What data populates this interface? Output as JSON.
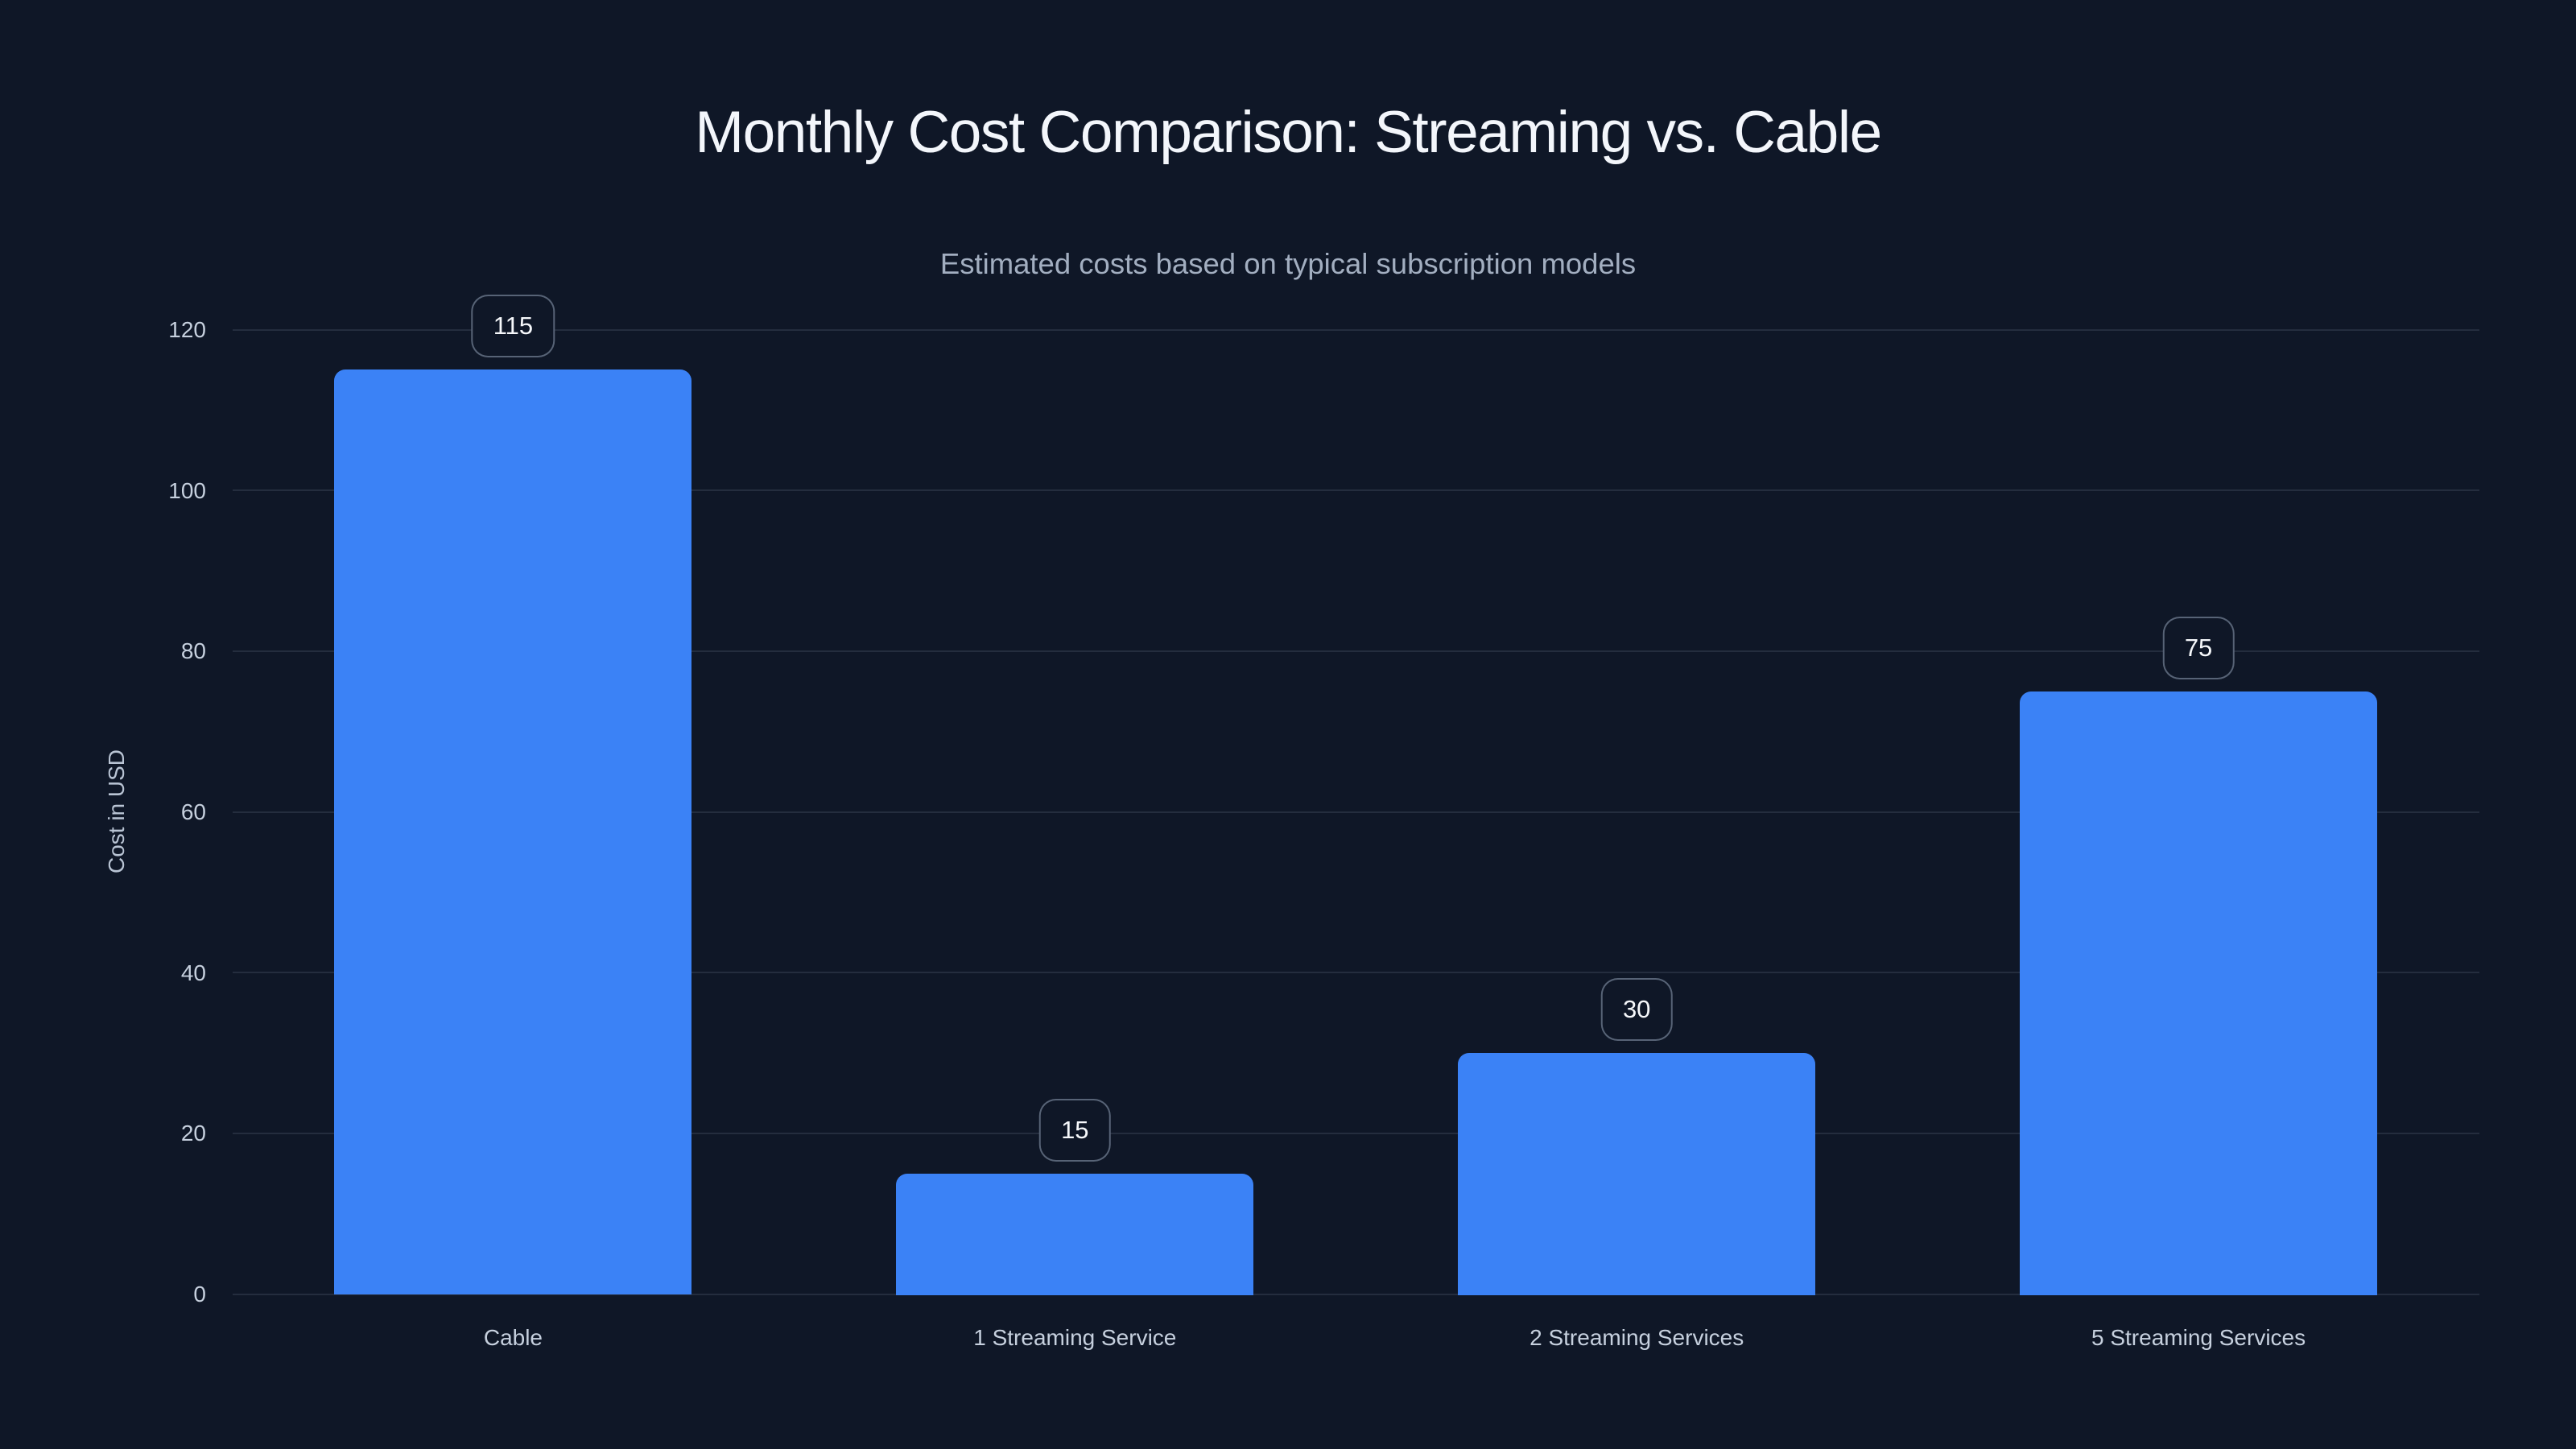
{
  "chart_data": {
    "type": "bar",
    "title": "Monthly Cost Comparison: Streaming vs. Cable",
    "subtitle": "Estimated costs based on typical subscription models",
    "categories": [
      "Cable",
      "1 Streaming Service",
      "2 Streaming Services",
      "5 Streaming Services"
    ],
    "values": [
      115,
      15,
      30,
      75
    ],
    "value_labels": [
      "115",
      "15",
      "30",
      "75"
    ],
    "xlabel": "",
    "ylabel": "Cost in USD",
    "ylim": [
      0,
      120
    ],
    "yticks": [
      0,
      20,
      40,
      60,
      80,
      100,
      120
    ],
    "grid": true,
    "legend": false,
    "colors": {
      "background": "#0f1727",
      "bar": "#3b82f6",
      "title": "#f3f6fb",
      "subtitle": "#a2aec0",
      "tick_labels": "#c6d0de",
      "axis_title": "#b9c4d4",
      "gridline": "rgba(148,163,184,0.16)",
      "badge_border": "rgba(148,163,184,0.55)",
      "badge_text": "#f6f8fb"
    }
  }
}
